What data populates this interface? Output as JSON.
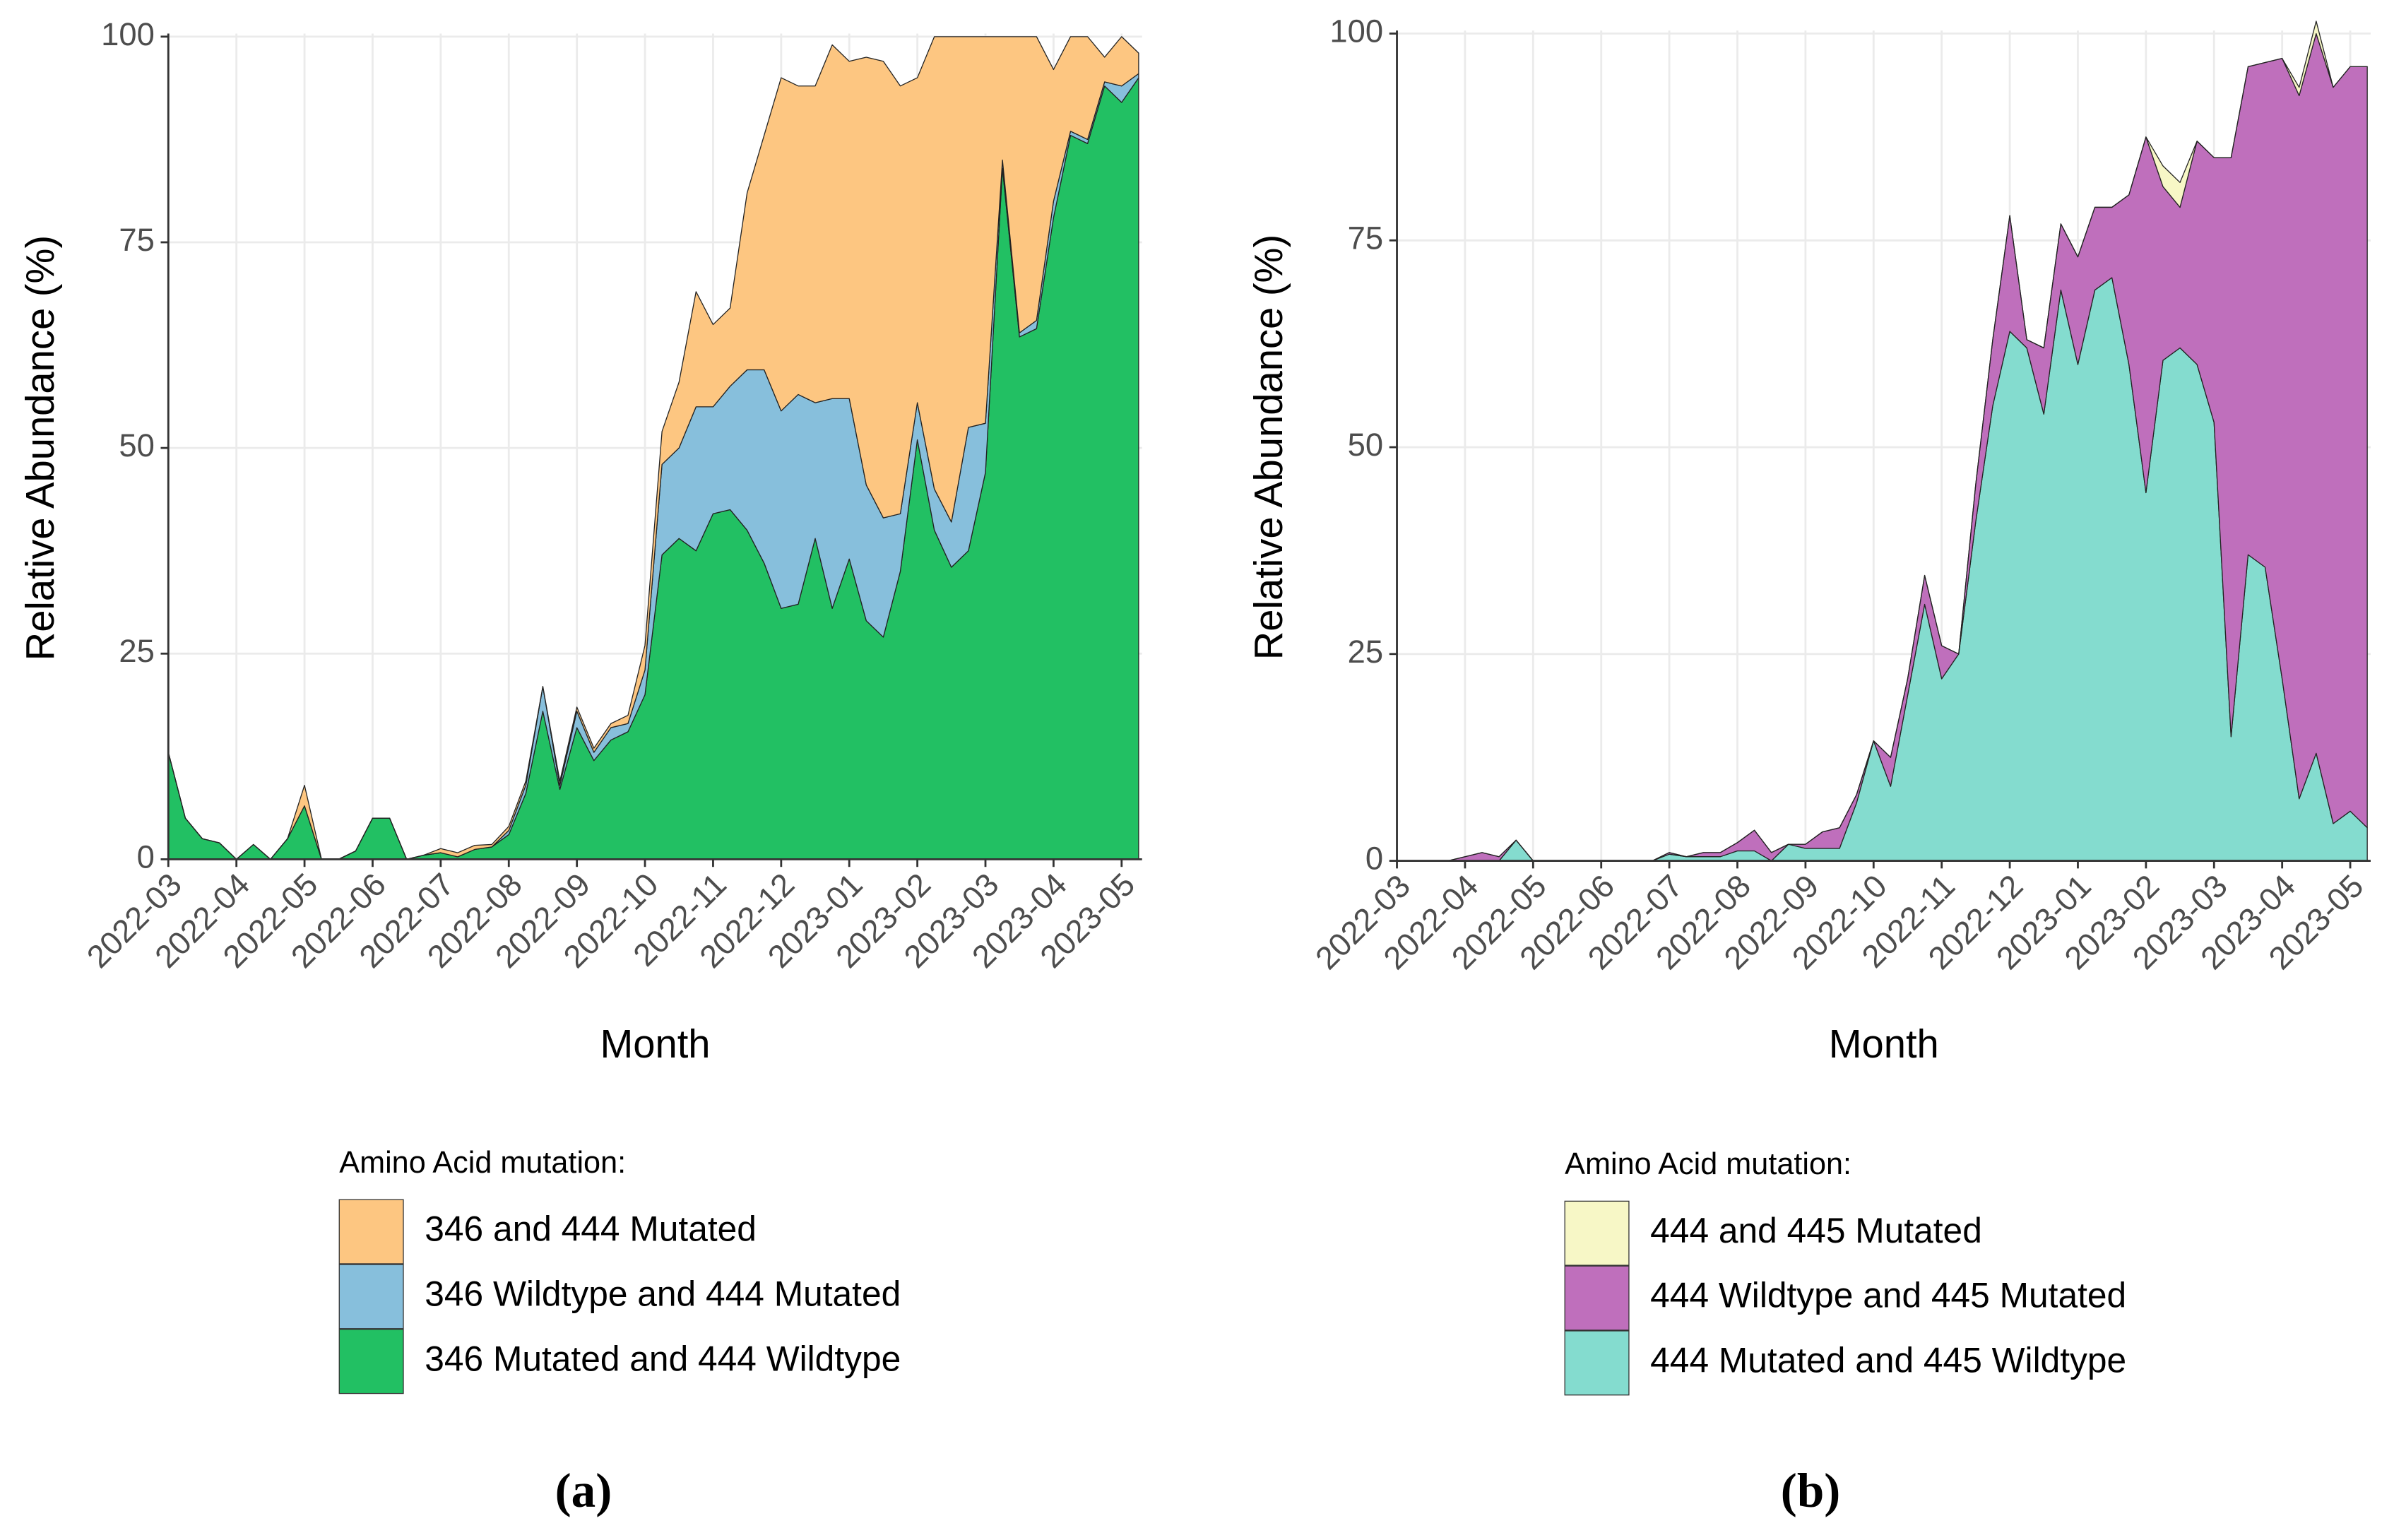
{
  "chart_data": [
    {
      "type": "area",
      "stacked": true,
      "x_label": "Month",
      "y_label": "Relative Abundance (%)",
      "legend_title": "Amino Acid mutation:",
      "caption": "(a)",
      "grid": true,
      "xlim": [
        0,
        14.3
      ],
      "ylim": [
        0,
        100
      ],
      "yticks": [
        0,
        25,
        50,
        75,
        100
      ],
      "xticks": [
        {
          "value": 0,
          "label": "2022-03"
        },
        {
          "value": 1,
          "label": "2022-04"
        },
        {
          "value": 2,
          "label": "2022-05"
        },
        {
          "value": 3,
          "label": "2022-06"
        },
        {
          "value": 4,
          "label": "2022-07"
        },
        {
          "value": 5,
          "label": "2022-08"
        },
        {
          "value": 6,
          "label": "2022-09"
        },
        {
          "value": 7,
          "label": "2022-10"
        },
        {
          "value": 8,
          "label": "2022-11"
        },
        {
          "value": 9,
          "label": "2022-12"
        },
        {
          "value": 10,
          "label": "2023-01"
        },
        {
          "value": 11,
          "label": "2023-02"
        },
        {
          "value": 12,
          "label": "2023-03"
        },
        {
          "value": 13,
          "label": "2023-04"
        },
        {
          "value": 14,
          "label": "2023-05"
        }
      ],
      "x": [
        0,
        0.25,
        0.5,
        0.75,
        1,
        1.25,
        1.5,
        1.75,
        2,
        2.25,
        2.5,
        2.75,
        3,
        3.25,
        3.5,
        3.75,
        4,
        4.25,
        4.5,
        4.75,
        5,
        5.25,
        5.5,
        5.75,
        6,
        6.25,
        6.5,
        6.75,
        7,
        7.25,
        7.5,
        7.75,
        8,
        8.25,
        8.5,
        8.75,
        9,
        9.25,
        9.5,
        9.75,
        10,
        10.25,
        10.5,
        10.75,
        11,
        11.25,
        11.5,
        11.75,
        12,
        12.25,
        12.5,
        12.75,
        13,
        13.25,
        13.5,
        13.75,
        14,
        14.25
      ],
      "series": [
        {
          "name": "346 and 444 Mutated",
          "color": "#fdc681",
          "values": [
            0,
            0,
            0,
            0,
            0,
            0,
            0,
            0,
            2.5,
            0,
            0,
            0,
            0,
            0,
            0,
            0,
            0.5,
            0.5,
            0.5,
            0.3,
            0.5,
            0.5,
            0,
            0.5,
            0.5,
            0.5,
            0.5,
            1,
            3,
            4,
            8,
            14,
            10,
            9.5,
            21.5,
            28.5,
            40.5,
            37.5,
            38.5,
            43,
            41,
            52,
            55.5,
            52,
            39.5,
            55,
            59,
            47.5,
            47,
            15,
            36,
            34.5,
            16,
            11.5,
            12.5,
            3,
            6,
            2.5
          ]
        },
        {
          "name": "346 Wildtype and 444 Mutated",
          "color": "#87bfdc",
          "values": [
            0,
            0,
            0,
            0,
            0,
            0,
            0,
            0,
            0,
            0,
            0,
            0,
            0,
            0,
            0,
            0,
            0,
            0,
            0,
            0,
            0.5,
            1,
            3,
            0.5,
            2,
            1,
            1.5,
            1,
            3,
            11,
            11,
            17.5,
            13,
            15,
            19.5,
            23.5,
            24,
            25.5,
            16.5,
            25.5,
            19.5,
            16.5,
            14.5,
            7,
            4.5,
            5,
            5.5,
            15,
            6,
            1,
            0.5,
            1,
            2,
            0.5,
            0.5,
            0.5,
            2,
            0.5
          ]
        },
        {
          "name": "346 Mutated and 444 Wildtype",
          "color": "#22c063",
          "values": [
            13,
            5,
            2.5,
            2,
            0,
            1.8,
            0,
            2.5,
            6.5,
            0,
            0,
            1,
            5,
            5,
            0,
            0.5,
            0.8,
            0.3,
            1.2,
            1.5,
            3,
            8,
            18,
            8.5,
            16,
            12,
            14.5,
            15.5,
            20,
            37,
            39,
            37.5,
            42,
            42.5,
            40,
            36,
            30.5,
            31,
            39,
            30.5,
            36.5,
            29,
            27,
            35,
            51,
            40,
            35.5,
            37.5,
            47,
            84,
            63.5,
            64.5,
            78,
            88,
            87,
            94,
            92,
            95
          ]
        }
      ]
    },
    {
      "type": "area",
      "stacked": true,
      "x_label": "Month",
      "y_label": "Relative Abundance (%)",
      "legend_title": "Amino Acid mutation:",
      "caption": "(b)",
      "grid": true,
      "xlim": [
        0,
        14.3
      ],
      "ylim": [
        0,
        100
      ],
      "yticks": [
        0,
        25,
        50,
        75,
        100
      ],
      "xticks": [
        {
          "value": 0,
          "label": "2022-03"
        },
        {
          "value": 1,
          "label": "2022-04"
        },
        {
          "value": 2,
          "label": "2022-05"
        },
        {
          "value": 3,
          "label": "2022-06"
        },
        {
          "value": 4,
          "label": "2022-07"
        },
        {
          "value": 5,
          "label": "2022-08"
        },
        {
          "value": 6,
          "label": "2022-09"
        },
        {
          "value": 7,
          "label": "2022-10"
        },
        {
          "value": 8,
          "label": "2022-11"
        },
        {
          "value": 9,
          "label": "2022-12"
        },
        {
          "value": 10,
          "label": "2023-01"
        },
        {
          "value": 11,
          "label": "2023-02"
        },
        {
          "value": 12,
          "label": "2023-03"
        },
        {
          "value": 13,
          "label": "2023-04"
        },
        {
          "value": 14,
          "label": "2023-05"
        }
      ],
      "x": [
        0,
        0.25,
        0.5,
        0.75,
        1,
        1.25,
        1.5,
        1.75,
        2,
        2.25,
        2.5,
        2.75,
        3,
        3.25,
        3.5,
        3.75,
        4,
        4.25,
        4.5,
        4.75,
        5,
        5.25,
        5.5,
        5.75,
        6,
        6.25,
        6.5,
        6.75,
        7,
        7.25,
        7.5,
        7.75,
        8,
        8.25,
        8.5,
        8.75,
        9,
        9.25,
        9.5,
        9.75,
        10,
        10.25,
        10.5,
        10.75,
        11,
        11.25,
        11.5,
        11.75,
        12,
        12.25,
        12.5,
        12.75,
        13,
        13.25,
        13.5,
        13.75,
        14,
        14.25
      ],
      "series": [
        {
          "name": "444 and 445 Mutated",
          "color": "#f7f7c6",
          "values": [
            0,
            0,
            0,
            0,
            0,
            0,
            0,
            0,
            0,
            0,
            0,
            0,
            0,
            0,
            0,
            0,
            0,
            0,
            0,
            0,
            0,
            0,
            0,
            0,
            0,
            0,
            0,
            0,
            0,
            0,
            0,
            0,
            0,
            0,
            0,
            0,
            0,
            0,
            0,
            0,
            0,
            0,
            0,
            0,
            0,
            2.5,
            3,
            0,
            0,
            0,
            0,
            0,
            0,
            1,
            1.5,
            0,
            0,
            0
          ]
        },
        {
          "name": "444 Wildtype and 445 Mutated",
          "color": "#bf6fbc",
          "values": [
            0,
            0,
            0,
            0,
            0.5,
            1,
            0.5,
            0,
            0,
            0,
            0,
            0,
            0,
            0,
            0,
            0,
            0.2,
            0,
            0.5,
            0.5,
            1,
            2.5,
            1,
            0,
            0.5,
            2,
            2.5,
            1,
            0,
            3.5,
            2,
            3.5,
            4,
            0,
            4.5,
            8,
            14,
            1,
            8,
            8,
            13,
            10,
            8.5,
            20.5,
            43,
            21,
            17,
            27,
            32,
            70,
            59,
            61,
            75,
            85,
            87,
            89,
            90,
            92
          ]
        },
        {
          "name": "444 Mutated and 445 Wildtype",
          "color": "#84dccf",
          "values": [
            0,
            0,
            0,
            0,
            0,
            0,
            0,
            2.5,
            0,
            0,
            0,
            0,
            0,
            0,
            0,
            0,
            0.8,
            0.5,
            0.5,
            0.5,
            1.2,
            1.2,
            0,
            2,
            1.5,
            1.5,
            1.5,
            7,
            14.5,
            9,
            20,
            31,
            22,
            25,
            41,
            55,
            64,
            62,
            54,
            69,
            60,
            69,
            70.5,
            60,
            44.5,
            60.5,
            62,
            60,
            53,
            15,
            37,
            35.5,
            22,
            7.5,
            13,
            4.5,
            6,
            4
          ]
        }
      ]
    }
  ]
}
